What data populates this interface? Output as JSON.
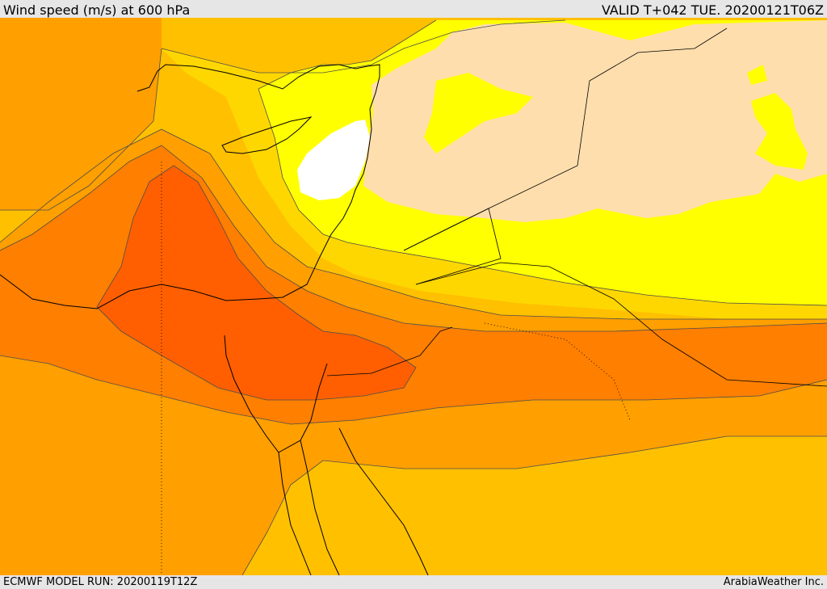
{
  "header": {
    "title": "Wind speed (m/s) at 600 hPa",
    "valid": "VALID T+042 TUE. 20200121T06Z"
  },
  "footer": {
    "model_run": "ECMWF MODEL RUN: 20200119T12Z",
    "credit": "ArabiaWeather Inc."
  },
  "map": {
    "field": "wind-speed-600hpa",
    "colors": {
      "calm": "#ffffff",
      "light": "#ffdead",
      "yellow": "#ffff00",
      "gold": "#ffd700",
      "amber": "#ffc000",
      "orange": "#ff9f00",
      "dark_orange": "#ff7f00",
      "red_orange": "#ff5f00",
      "contour": "#4d4d4d",
      "coast": "#000000"
    }
  }
}
